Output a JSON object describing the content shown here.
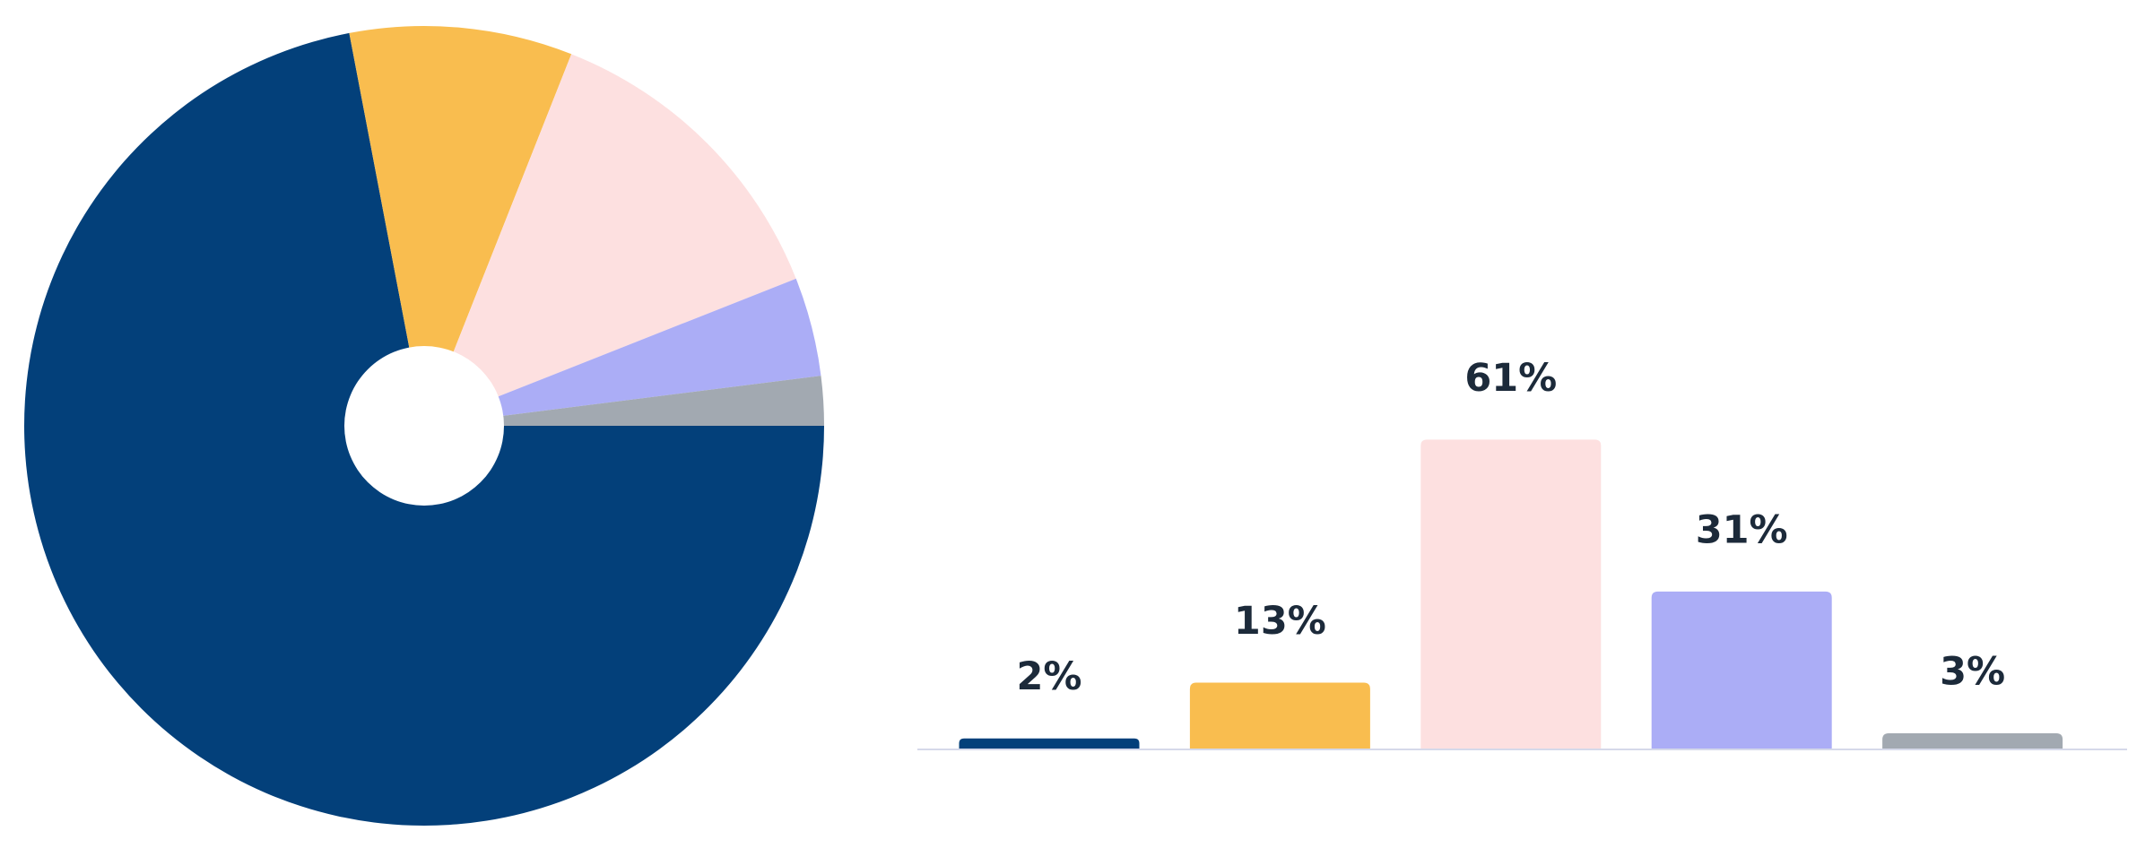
{
  "chart_data": [
    {
      "type": "pie",
      "values": [
        72,
        9,
        13,
        4,
        2
      ],
      "colors": [
        "#03407a",
        "#f9bd4f",
        "#fde0e0",
        "#abadf6",
        "#a2a9b1"
      ]
    },
    {
      "type": "bar",
      "values": [
        2,
        13,
        61,
        31,
        3
      ],
      "value_labels": [
        "2%",
        "13%",
        "61%",
        "31%",
        "3%"
      ],
      "colors": [
        "#03407a",
        "#f9bd4f",
        "#fde0e0",
        "#abadf6",
        "#a2a9b1"
      ]
    }
  ]
}
